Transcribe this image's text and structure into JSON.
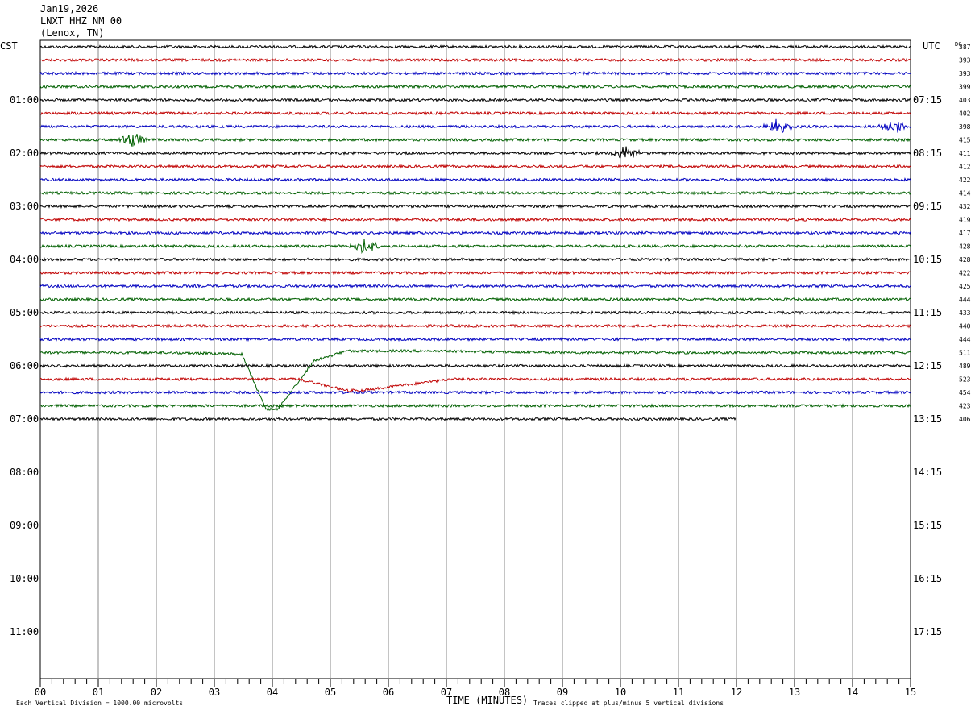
{
  "header": {
    "date": "Jan19,2026",
    "station": "LNXT HHZ NM 00",
    "location": "(Lenox, TN)"
  },
  "labels": {
    "left_tz": "CST",
    "right_tz": "UTC",
    "dc_label": "DC",
    "time_axis": "TIME (MINUTES)",
    "scale_note": "Each Vertical Division = 1000.00 microvolts",
    "clip_note": "Traces clipped at plus/minus 5 vertical divisions"
  },
  "colors": {
    "trace_cycle": [
      "#000000",
      "#c00000",
      "#0000c0",
      "#006000"
    ],
    "grid": "#888888"
  },
  "chart_data": {
    "type": "line",
    "title": "LNXT HHZ NM 00",
    "xlabel": "TIME (MINUTES)",
    "xlim": [
      0,
      15
    ],
    "x_ticks": [
      "00",
      "01",
      "02",
      "03",
      "04",
      "05",
      "06",
      "07",
      "08",
      "09",
      "10",
      "11",
      "12",
      "13",
      "14",
      "15"
    ],
    "y_labels_left": [
      "01:00",
      "02:00",
      "03:00",
      "04:00",
      "05:00",
      "06:00",
      "07:00",
      "08:00",
      "09:00",
      "10:00",
      "11:00"
    ],
    "y_labels_right": [
      "07:15",
      "08:15",
      "09:15",
      "10:15",
      "11:15",
      "12:15",
      "13:15",
      "14:15",
      "15:15",
      "16:15",
      "17:15"
    ],
    "dc_offsets": [
      387,
      393,
      393,
      399,
      403,
      402,
      398,
      415,
      411,
      412,
      422,
      414,
      432,
      419,
      417,
      428,
      428,
      422,
      425,
      444,
      433,
      440,
      444,
      511,
      489,
      523,
      454,
      423,
      406
    ],
    "grid": true,
    "legend": "none",
    "events": [
      {
        "trace": 6,
        "minute": 12.7,
        "type": "burst"
      },
      {
        "trace": 6,
        "minute": 14.7,
        "type": "burst"
      },
      {
        "trace": 7,
        "minute": 1.6,
        "type": "burst"
      },
      {
        "trace": 8,
        "minute": 10.1,
        "type": "burst"
      },
      {
        "trace": 15,
        "minute": 5.6,
        "type": "burst"
      },
      {
        "trace": 23,
        "minute": 3.9,
        "type": "long-period"
      },
      {
        "trace": 25,
        "minute": 5.3,
        "type": "long-period"
      }
    ],
    "last_trace_end_minute": 12
  }
}
